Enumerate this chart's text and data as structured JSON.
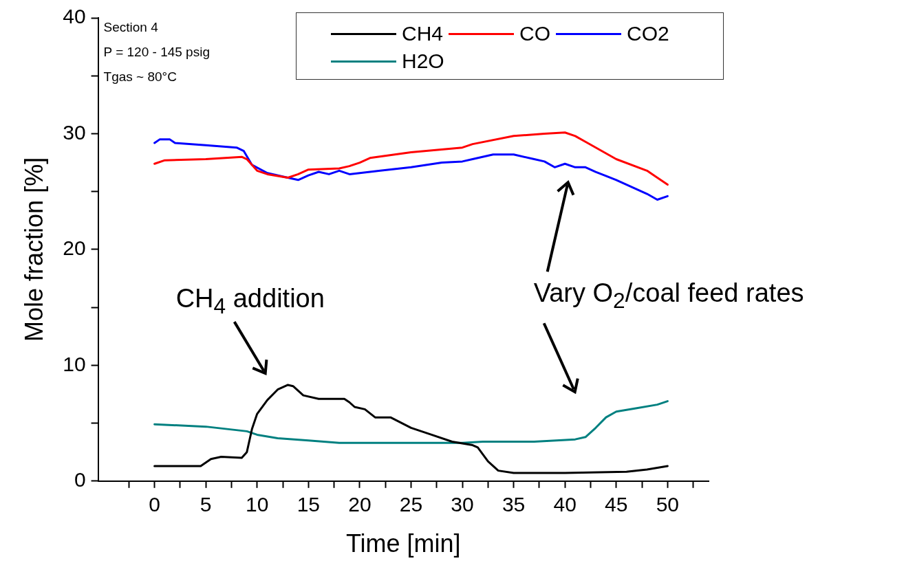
{
  "chart_data": {
    "type": "line",
    "xlabel": "Time [min]",
    "ylabel": "Mole fraction [%]",
    "xlim": [
      -5.5,
      54
    ],
    "ylim": [
      0,
      40
    ],
    "xticks": [
      {
        "value": -2.5,
        "label": null
      },
      0,
      {
        "value": 2.5,
        "label": null
      },
      5,
      {
        "value": 7.5,
        "label": null
      },
      10,
      {
        "value": 12.5,
        "label": null
      },
      15,
      {
        "value": 17.5,
        "label": null
      },
      20,
      {
        "value": 22.5,
        "label": null
      },
      25,
      {
        "value": 27.5,
        "label": null
      },
      30,
      {
        "value": 32.5,
        "label": null
      },
      35,
      {
        "value": 37.5,
        "label": null
      },
      40,
      {
        "value": 42.5,
        "label": null
      },
      45,
      {
        "value": 47.5,
        "label": null
      },
      50,
      {
        "value": 52.5,
        "label": null
      }
    ],
    "yticks": [
      0,
      {
        "value": 5,
        "label": null
      },
      10,
      {
        "value": 15,
        "label": null
      },
      20,
      {
        "value": 25,
        "label": null
      },
      30,
      {
        "value": 35,
        "label": null
      },
      40
    ],
    "grid": false,
    "legend": "top right",
    "marker": "none",
    "line_style": "solid",
    "series": [
      {
        "name": "CH4",
        "color": "#000000",
        "x": [
          0,
          4.5,
          5.5,
          6.5,
          8.5,
          9,
          9.5,
          10,
          11,
          12,
          13,
          13.5,
          14.5,
          16,
          18.5,
          19,
          19.5,
          20.5,
          21.5,
          23,
          25,
          27,
          29,
          31,
          31.5,
          32.5,
          33.5,
          35,
          40,
          46,
          48,
          50
        ],
        "values": [
          1.3,
          1.3,
          1.9,
          2.1,
          2.0,
          2.5,
          4.5,
          5.8,
          7.0,
          7.9,
          8.3,
          8.2,
          7.4,
          7.1,
          7.1,
          6.8,
          6.4,
          6.2,
          5.5,
          5.5,
          4.6,
          4.0,
          3.4,
          3.1,
          2.9,
          1.7,
          0.9,
          0.7,
          0.7,
          0.8,
          1.0,
          1.3
        ]
      },
      {
        "name": "CO",
        "color": "#ff0000",
        "x": [
          0,
          1,
          5,
          8.5,
          9,
          10,
          11,
          13,
          14,
          15,
          18,
          19,
          20,
          21,
          25,
          30,
          31,
          35,
          38,
          40,
          41,
          42,
          45,
          48,
          50
        ],
        "values": [
          27.4,
          27.7,
          27.8,
          28.0,
          27.8,
          26.8,
          26.5,
          26.2,
          26.5,
          26.9,
          27.0,
          27.2,
          27.5,
          27.9,
          28.4,
          28.8,
          29.1,
          29.8,
          30.0,
          30.1,
          29.8,
          29.3,
          27.8,
          26.8,
          25.6
        ]
      },
      {
        "name": "CO2",
        "color": "#0000ff",
        "x": [
          0,
          0.5,
          1.5,
          2,
          5,
          8,
          8.7,
          9.5,
          11,
          13,
          14,
          15,
          16,
          17,
          18,
          19,
          20,
          22,
          25,
          28,
          30,
          31,
          33,
          35,
          37,
          38,
          39,
          40,
          41,
          42,
          43,
          45,
          47,
          48,
          49,
          50
        ],
        "values": [
          29.2,
          29.5,
          29.5,
          29.2,
          29.0,
          28.8,
          28.5,
          27.3,
          26.6,
          26.2,
          26.0,
          26.4,
          26.7,
          26.5,
          26.8,
          26.5,
          26.6,
          26.8,
          27.1,
          27.5,
          27.6,
          27.8,
          28.2,
          28.2,
          27.8,
          27.6,
          27.1,
          27.4,
          27.1,
          27.1,
          26.7,
          26.0,
          25.2,
          24.8,
          24.3,
          24.6
        ]
      },
      {
        "name": "H2O",
        "color": "#008080",
        "x": [
          0,
          5,
          9,
          10,
          12,
          15,
          18,
          25,
          30,
          32,
          37,
          41,
          42,
          43,
          44,
          45,
          47,
          49,
          50
        ],
        "values": [
          4.9,
          4.7,
          4.3,
          4.0,
          3.7,
          3.5,
          3.3,
          3.3,
          3.3,
          3.4,
          3.4,
          3.6,
          3.8,
          4.6,
          5.5,
          6.0,
          6.3,
          6.6,
          6.9
        ]
      }
    ],
    "annotations": [
      "Section 4",
      "P = 120 - 145 psig",
      "Tgas ~ 80°C",
      "CH$_{4}$ addition",
      "Vary O$_{2}$/coal feed rates"
    ]
  }
}
